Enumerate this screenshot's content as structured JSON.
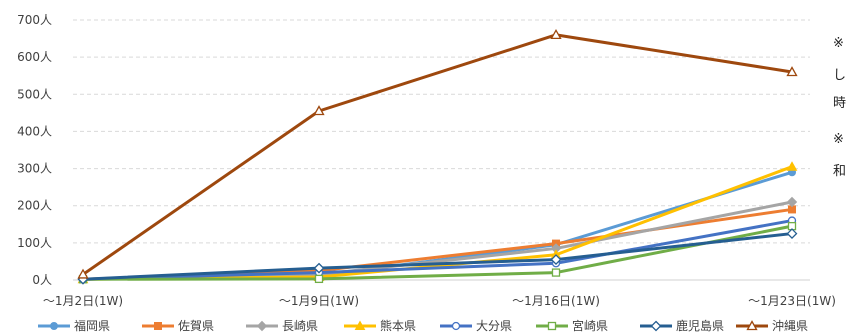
{
  "chart_data": {
    "type": "line",
    "title": "",
    "xlabel": "",
    "ylabel": "",
    "ylim": [
      0,
      700
    ],
    "y_unit": "人",
    "y_ticks": [
      "0人",
      "100人",
      "200人",
      "300人",
      "400人",
      "500人",
      "600人",
      "700人"
    ],
    "categories": [
      "〜1月2日(1W)",
      "〜1月9日(1W)",
      "〜1月16日(1W)",
      "〜1月23日(1W)"
    ],
    "grid": true,
    "legend_position": "bottom",
    "series": [
      {
        "name": "福岡県",
        "color": "#5b9bd5",
        "marker": "circle",
        "values": [
          2,
          12,
          95,
          290
        ]
      },
      {
        "name": "佐賀県",
        "color": "#ed7d31",
        "marker": "square",
        "values": [
          2,
          25,
          98,
          190
        ]
      },
      {
        "name": "長崎県",
        "color": "#a5a5a5",
        "marker": "diamond",
        "values": [
          2,
          15,
          85,
          210
        ]
      },
      {
        "name": "熊本県",
        "color": "#ffc000",
        "marker": "triangle",
        "values": [
          2,
          8,
          68,
          305
        ]
      },
      {
        "name": "大分県",
        "color": "#4472c4",
        "marker": "circle-open",
        "values": [
          2,
          20,
          45,
          160
        ]
      },
      {
        "name": "宮崎県",
        "color": "#70ad47",
        "marker": "square-open",
        "values": [
          2,
          3,
          20,
          145
        ]
      },
      {
        "name": "鹿児島県",
        "color": "#255e91",
        "marker": "diamond-open",
        "values": [
          2,
          32,
          55,
          125
        ]
      },
      {
        "name": "沖縄県",
        "color": "#9e480e",
        "marker": "triangle-open",
        "values": [
          15,
          455,
          660,
          560
        ]
      }
    ]
  },
  "notes": [
    "※",
    "し",
    "時",
    "※",
    "和"
  ]
}
